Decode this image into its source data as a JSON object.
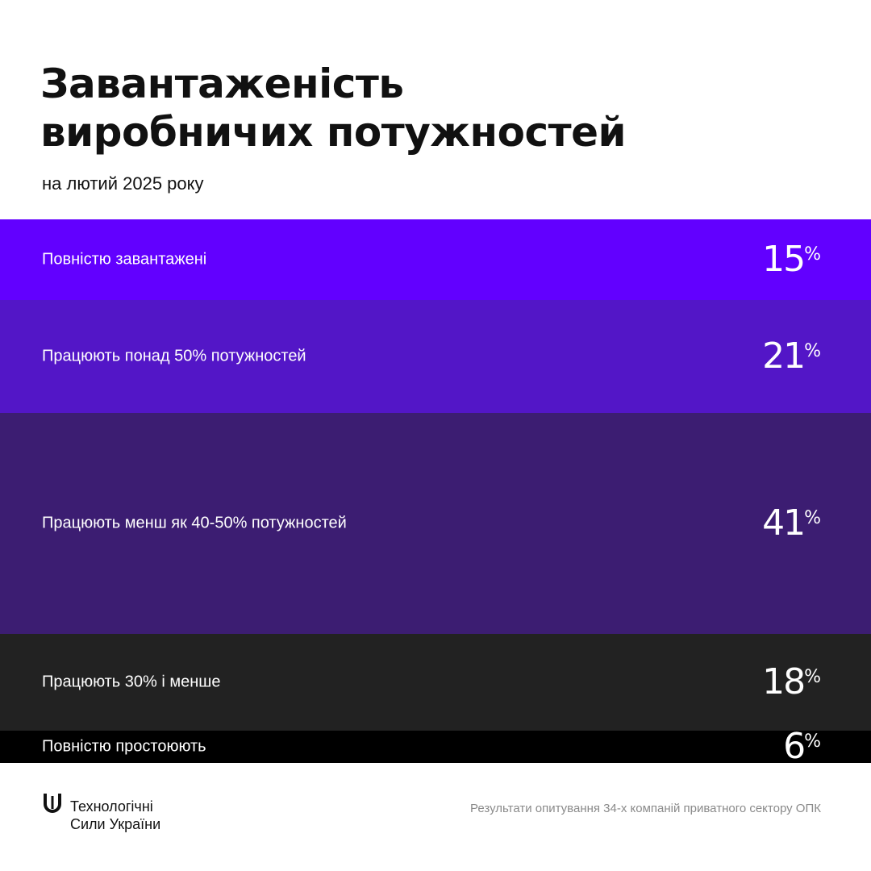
{
  "title_lines": [
    "Завантаженість",
    "виробничих потужностей"
  ],
  "subtitle": "на лютий 2025 року",
  "chart_data": {
    "type": "bar",
    "orientation": "stacked-horizontal-bands",
    "unit": "%",
    "categories": [
      "Повністю завантажені",
      "Працюють понад 50% потужностей",
      "Працюють менш як 40-50% потужностей",
      "Працюють 30% і менше",
      "Повністю простоюють"
    ],
    "values": [
      15,
      21,
      41,
      18,
      6
    ],
    "colors": [
      "#6200ff",
      "#5316c7",
      "#3c1d72",
      "#222222",
      "#000000"
    ]
  },
  "footer": {
    "logo_lines": [
      "Технологічні",
      "Сили України"
    ],
    "logo_icon": "u-shape-logo-icon",
    "note": "Результати опитування 34-х компаній приватного сектору ОПК"
  }
}
